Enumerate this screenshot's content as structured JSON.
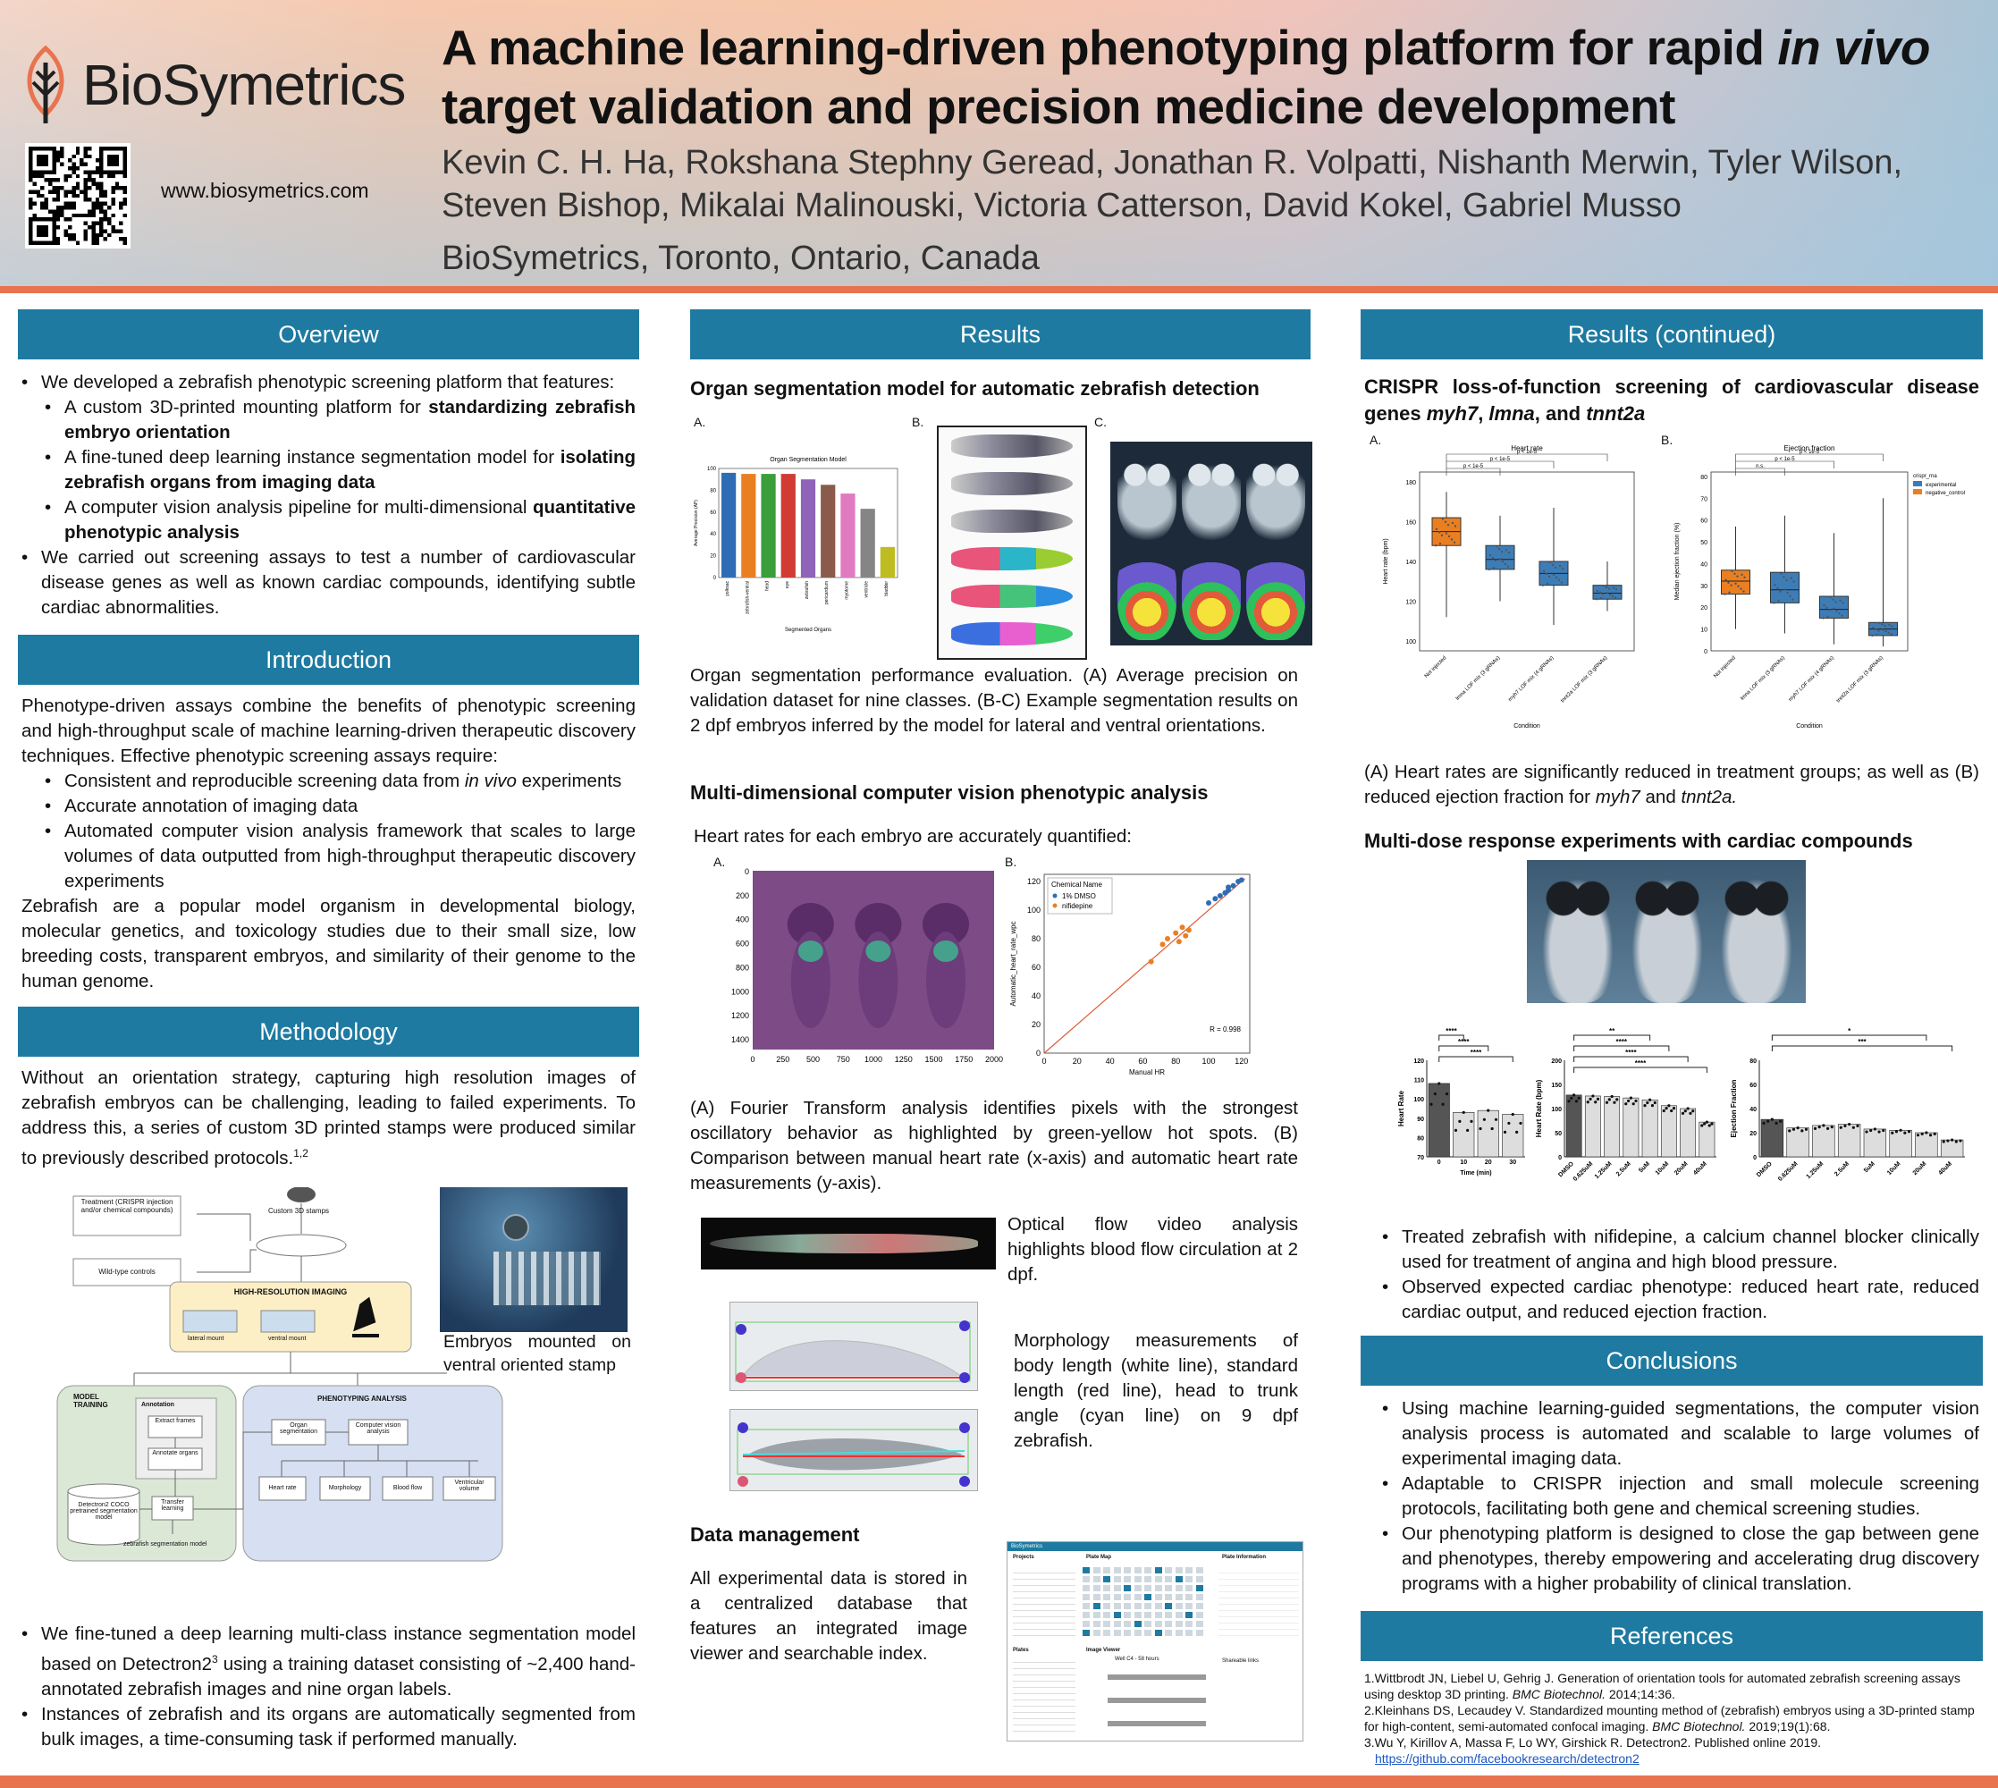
{
  "header": {
    "logo_text": "BioSymetrics",
    "website": "www.biosymetrics.com",
    "title_part1": "A machine learning-driven phenotyping platform for rapid ",
    "title_italic1": "in vivo",
    "title_part2": " target validation and precision medicine development",
    "authors": "Kevin C. H. Ha, Rokshana Stephny Geread, Jonathan R. Volpatti, Nishanth Merwin, Tyler Wilson, Steven Bishop, Mikalai Malinouski, Victoria Catterson, David Kokel, Gabriel Musso",
    "affiliation": "BioSymetrics, Toronto, Ontario, Canada"
  },
  "overview": {
    "heading": "Overview",
    "b1": "We developed a zebrafish phenotypic screening platform that features:",
    "b1a_pre": "A custom 3D-printed mounting platform for ",
    "b1a_bold": "standardizing zebrafish embryo orientation",
    "b1b_pre": "A fine-tuned deep learning instance segmentation model for ",
    "b1b_bold": "isolating zebrafish organs from imaging data",
    "b1c_pre": "A computer vision analysis pipeline for multi-dimensional ",
    "b1c_bold": "quantitative phenotypic analysis",
    "b2": "We carried out screening assays to test a number of cardiovascular disease genes as well as known cardiac compounds, identifying subtle cardiac abnormalities."
  },
  "introduction": {
    "heading": "Introduction",
    "p1": "Phenotype-driven assays combine the benefits of phenotypic screening and high-throughput scale of machine learning-driven therapeutic discovery techniques. Effective phenotypic screening assays require:",
    "b1_pre": "Consistent and reproducible screening data from ",
    "b1_it": "in vivo",
    "b1_post": " experiments",
    "b2": "Accurate annotation of imaging data",
    "b3": "Automated computer vision analysis framework that scales to large volumes of data outputted from high-throughput therapeutic discovery experiments",
    "p2": "Zebrafish are a popular model organism in developmental biology, molecular genetics, and toxicology studies due to their small size, low breeding costs, transparent embryos, and similarity of their genome to the human genome."
  },
  "methodology": {
    "heading": "Methodology",
    "p1": "Without an orientation strategy, capturing high resolution images of zebrafish embryos can be challenging, leading to failed experiments. To address this, a series of custom 3D printed stamps were produced similar to previously described protocols.",
    "p1_sup": "1,2",
    "diagram": {
      "treatment": "Treatment (CRISPR injection and/or chemical compounds)",
      "stamps": "Custom 3D stamps",
      "wildtype": "Wild-type controls",
      "imaging": "HIGH-RESOLUTION IMAGING",
      "lateral": "lateral mount",
      "ventral": "ventral mount",
      "model_training": "MODEL TRAINING",
      "annotation": "Annotation",
      "extract": "Extract frames",
      "annotate": "Annotate organs",
      "detectron": "Detectron2 COCO pretrained segmentation model",
      "transfer": "Transfer learning",
      "zf_model": "zebrafish segmentation model",
      "phenotyping": "PHENOTYPING ANALYSIS",
      "organ_seg": "Organ segmentation",
      "cv_analysis": "Computer vision analysis",
      "heart_rate": "Heart rate",
      "morphology": "Morphology",
      "blood_flow": "Blood flow",
      "ventricular": "Ventricular volume"
    },
    "photo_caption": "Embryos mounted on ventral oriented stamp",
    "b1_pre": "We fine-tuned a deep learning multi-class instance segmentation model based on Detectron2",
    "b1_sup": "3",
    "b1_post": " using a training dataset consisting of ~2,400 hand-annotated zebrafish images and nine organ labels.",
    "b2": "Instances of zebrafish and its organs are automatically segmented from bulk images, a time-consuming task if performed manually."
  },
  "results": {
    "heading": "Results",
    "sub1": "Organ segmentation model for automatic zebrafish detection",
    "lab_a": "A.",
    "lab_b": "B.",
    "lab_c": "C.",
    "cap1": "Organ segmentation performance evaluation. (A) Average precision on validation dataset for nine classes. (B-C) Example segmentation results on 2 dpf embryos inferred by the model for lateral and ventral orientations.",
    "sub2": "Multi-dimensional computer vision phenotypic analysis",
    "hr_intro": "Heart rates for each embryo are accurately quantified:",
    "cap2": "(A) Fourier Transform analysis identifies pixels with the strongest oscillatory behavior as highlighted by green-yellow hot spots. (B) Comparison between manual heart rate (x-axis) and automatic heart rate measurements (y-axis).",
    "optical": "Optical flow video analysis highlights blood flow circulation at 2 dpf.",
    "morph": "Morphology measurements of body length (white line), standard length (red line), head to trunk angle (cyan line) on 9 dpf zebrafish.",
    "sub3": "Data management",
    "datamgmt": "All experimental data is stored in a centralized database that features an integrated image viewer and searchable index.",
    "heatmap_yticks": [
      "0",
      "200",
      "400",
      "600",
      "800",
      "1000",
      "1200",
      "1400"
    ],
    "heatmap_xticks": [
      "0",
      "250",
      "500",
      "750",
      "1000",
      "1250",
      "1500",
      "1750",
      "2000"
    ],
    "db_labels": {
      "brand": "BioSymetrics",
      "projects": "Projects",
      "platemap": "Plate Map",
      "platemap_info": "Plate Information",
      "plates": "Plates",
      "viewer": "Image Viewer",
      "well": "Well C4 - 58 hours",
      "links": "Shareable links"
    }
  },
  "results2": {
    "heading": "Results (continued)",
    "sub1_pre": "CRISPR loss-of-function screening of cardiovascular disease genes ",
    "gene1": "myh7",
    "gene2": "lmna",
    "gene3": "tnnt2a",
    "sub1_and": ", and ",
    "sub1_comma": ", ",
    "lab_a": "A.",
    "lab_b": "B.",
    "cap1_pre": "(A) Heart rates are significantly reduced in treatment groups; as well as (B) reduced ejection fraction for ",
    "cap1_g1": "myh7",
    "cap1_and": " and ",
    "cap1_g2": "tnnt2a.",
    "sub2": "Multi-dose response experiments with cardiac compounds",
    "b1": "Treated zebrafish with nifidepine, a calcium channel blocker clinically used for treatment of angina and high blood pressure.",
    "b2": "Observed expected cardiac phenotype: reduced heart rate, reduced cardiac output, and reduced ejection fraction."
  },
  "conclusions": {
    "heading": "Conclusions",
    "b1": "Using machine learning-guided segmentations, the computer vision analysis process is automated and scalable to large volumes of experimental imaging data.",
    "b2": "Adaptable to CRISPR injection and small molecule screening protocols, facilitating both gene and chemical screening studies.",
    "b3": "Our phenotyping platform is designed to close the gap between gene and phenotypes, thereby empowering and accelerating drug discovery programs with a higher probability of clinical translation."
  },
  "references": {
    "heading": "References",
    "r1_pre": "1.Wittbrodt JN, Liebel U, Gehrig J. Generation of orientation tools for automated zebrafish screening assays using desktop 3D printing. ",
    "r1_it": "BMC Biotechnol.",
    "r1_post": " 2014;14:36.",
    "r2_pre": "2.Kleinhans DS, Lecaudey V. Standardized mounting method of (zebrafish) embryos using a 3D-printed stamp for high-content, semi-automated confocal imaging. ",
    "r2_it": "BMC Biotechnol.",
    "r2_post": " 2019;19(1):68.",
    "r3": "3.Wu Y, Kirillov A, Massa F, Lo WY, Girshick R. Detectron2. Published online 2019.",
    "r3_link": "https://github.com/facebookresearch/detectron2"
  },
  "chart_data": [
    {
      "id": "organ_seg",
      "type": "bar",
      "title": "Organ Segmentation Model",
      "xlabel": "Segmented Organs",
      "ylabel": "Average Precision (AP)",
      "categories": [
        "yolksac",
        "zebrafish-ventral",
        "head",
        "eye",
        "zebrafish",
        "pericardium",
        "myotome",
        "ventricle",
        "bladder"
      ],
      "values": [
        96,
        95,
        95,
        95,
        90,
        85,
        77,
        63,
        28
      ],
      "colors": [
        "#2e6db5",
        "#ea7f22",
        "#3a9e3a",
        "#d23a34",
        "#8e63b8",
        "#8a5a4a",
        "#e17bc1",
        "#858585",
        "#bdbd22"
      ],
      "ylim": [
        0,
        100
      ],
      "yticks": [
        0,
        20,
        40,
        60,
        80,
        100
      ]
    },
    {
      "id": "hr_scatter",
      "type": "scatter",
      "xlabel": "Manual HR",
      "ylabel": "Automatic_heart_rate_wpc",
      "legend_title": "Chemical Name",
      "series": [
        {
          "name": "1% DMSO",
          "color": "#2e6db5",
          "points": [
            [
              100,
              105
            ],
            [
              104,
              108
            ],
            [
              107,
              110
            ],
            [
              110,
              112
            ],
            [
              112,
              114
            ],
            [
              115,
              117
            ],
            [
              118,
              120
            ],
            [
              120,
              121
            ],
            [
              112,
              116
            ]
          ]
        },
        {
          "name": "nifidepine",
          "color": "#ea7f22",
          "points": [
            [
              65,
              64
            ],
            [
              72,
              76
            ],
            [
              75,
              80
            ],
            [
              80,
              84
            ],
            [
              84,
              88
            ],
            [
              86,
              82
            ],
            [
              88,
              86
            ],
            [
              82,
              78
            ]
          ]
        }
      ],
      "xlim": [
        0,
        125
      ],
      "ylim": [
        0,
        125
      ],
      "xticks": [
        0,
        20,
        40,
        60,
        80,
        100,
        120
      ],
      "yticks": [
        0,
        20,
        40,
        60,
        80,
        100,
        120
      ],
      "annotation": "R = 0.998"
    },
    {
      "id": "crispr_hr",
      "type": "box",
      "title": "Heart rate",
      "xlabel": "Condition",
      "ylabel": "Heart rate (bpm)",
      "categories": [
        "Not injected",
        "lmna LOF mix (3 gRNAs)",
        "myh7 LOF mix (4 gRNAs)",
        "tnnt2a LOF mix (3 gRNAs)"
      ],
      "stats": [
        {
          "min": 112,
          "q1": 148,
          "med": 155,
          "q3": 162,
          "max": 175,
          "color": "#ea7f22"
        },
        {
          "min": 120,
          "q1": 136,
          "med": 141,
          "q3": 148,
          "max": 163,
          "color": "#3d7db7"
        },
        {
          "min": 108,
          "q1": 128,
          "med": 134,
          "q3": 140,
          "max": 167,
          "color": "#3d7db7"
        },
        {
          "min": 115,
          "q1": 121,
          "med": 124,
          "q3": 128,
          "max": 140,
          "color": "#3d7db7"
        }
      ],
      "ylim": [
        95,
        185
      ],
      "yticks": [
        100,
        120,
        140,
        160,
        180
      ],
      "sig": [
        "p < 1e-5",
        "p < 1e-5",
        "p < 1e-5"
      ]
    },
    {
      "id": "crispr_ef",
      "type": "box",
      "title": "Ejection fraction",
      "xlabel": "Condition",
      "ylabel": "Median ejection fraction (%)",
      "categories": [
        "Not injected",
        "lmna LOF mix (3 gRNAs)",
        "myh7 LOF mix (4 gRNAs)",
        "tnnt2a LOF mix (3 gRNAs)"
      ],
      "stats": [
        {
          "min": 10,
          "q1": 26,
          "med": 32,
          "q3": 37,
          "max": 57,
          "color": "#ea7f22"
        },
        {
          "min": 8,
          "q1": 22,
          "med": 28,
          "q3": 36,
          "max": 62,
          "color": "#3d7db7"
        },
        {
          "min": 3,
          "q1": 15,
          "med": 19,
          "q3": 25,
          "max": 54,
          "color": "#3d7db7"
        },
        {
          "min": 2,
          "q1": 7,
          "med": 10,
          "q3": 13,
          "max": 70,
          "color": "#3d7db7"
        }
      ],
      "ylim": [
        0,
        82
      ],
      "yticks": [
        0,
        10,
        20,
        30,
        40,
        50,
        60,
        70,
        80
      ],
      "legend_title": "crispr_rna",
      "legend": [
        "experimental",
        "negative_control"
      ],
      "sig": [
        "n.s.",
        "p < 1e-5",
        "p < 1e-5"
      ]
    },
    {
      "id": "dose_time",
      "type": "bar",
      "xlabel": "Time (min)",
      "ylabel": "Heart Rate",
      "categories": [
        "0",
        "10",
        "20",
        "30"
      ],
      "values": [
        108,
        93,
        94,
        92
      ],
      "ylim": [
        70,
        120
      ],
      "yticks": [
        70,
        80,
        90,
        100,
        110,
        120
      ],
      "colors": [
        "#555",
        "#ddd",
        "#ddd",
        "#ddd"
      ],
      "sig": [
        "****",
        "****",
        "****"
      ]
    },
    {
      "id": "dose_hr",
      "type": "bar",
      "ylabel": "Heart Rate (bpm)",
      "categories": [
        "DMSO",
        "0.625uM",
        "1.25uM",
        "2.5uM",
        "5uM",
        "10uM",
        "20uM",
        "40uM"
      ],
      "values": [
        128,
        126,
        125,
        122,
        118,
        106,
        100,
        72
      ],
      "ylim": [
        0,
        200
      ],
      "yticks": [
        0,
        50,
        100,
        150,
        200
      ],
      "colors": [
        "#555",
        "#ddd",
        "#ddd",
        "#ddd",
        "#ddd",
        "#ddd",
        "#ddd",
        "#ddd"
      ],
      "sig": [
        "****",
        "****",
        "****",
        "**"
      ]
    },
    {
      "id": "dose_ef",
      "type": "bar",
      "ylabel": "Ejection Fraction",
      "categories": [
        "DMSO",
        "0.625uM",
        "1.25uM",
        "2.5uM",
        "5uM",
        "10uM",
        "20uM",
        "40uM"
      ],
      "values": [
        31,
        24,
        26,
        27,
        23,
        22,
        20,
        14
      ],
      "ylim": [
        0,
        80
      ],
      "yticks": [
        0,
        20,
        40,
        60,
        80
      ],
      "colors": [
        "#555",
        "#ddd",
        "#ddd",
        "#ddd",
        "#ddd",
        "#ddd",
        "#ddd",
        "#ddd"
      ],
      "sig": [
        "***",
        "*"
      ]
    }
  ]
}
